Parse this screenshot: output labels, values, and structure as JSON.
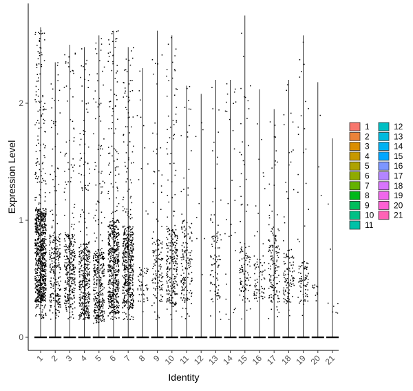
{
  "chart_data": {
    "type": "violin-dotplot",
    "title": "",
    "xlabel": "Identity",
    "ylabel": "Expression Level",
    "ylim": [
      -0.12,
      2.85
    ],
    "yticks": [
      0,
      1,
      2
    ],
    "categories": [
      "1",
      "2",
      "3",
      "4",
      "5",
      "6",
      "7",
      "8",
      "9",
      "10",
      "11",
      "12",
      "13",
      "14",
      "15",
      "16",
      "17",
      "18",
      "19",
      "20",
      "21"
    ],
    "max_values": [
      2.65,
      2.35,
      2.5,
      2.48,
      2.58,
      2.62,
      2.48,
      2.3,
      2.62,
      2.58,
      2.15,
      2.08,
      2.2,
      2.2,
      2.75,
      2.12,
      1.95,
      2.2,
      2.58,
      2.18,
      1.7
    ],
    "dense_band": [
      [
        0.3,
        1.1
      ],
      [
        0.2,
        0.9
      ],
      [
        0.25,
        0.9
      ],
      [
        0.15,
        0.8
      ],
      [
        0.12,
        0.75
      ],
      [
        0.2,
        1.0
      ],
      [
        0.25,
        0.95
      ],
      [
        0.3,
        0.6
      ],
      [
        0.3,
        0.85
      ],
      [
        0.25,
        0.95
      ],
      [
        0.3,
        1.0
      ],
      [
        0.0,
        0.0
      ],
      [
        0.3,
        0.9
      ],
      [
        0.0,
        0.0
      ],
      [
        0.3,
        0.8
      ],
      [
        0.3,
        0.7
      ],
      [
        0.3,
        0.95
      ],
      [
        0.3,
        0.75
      ],
      [
        0.3,
        0.65
      ],
      [
        0.3,
        0.45
      ],
      [
        0.2,
        0.3
      ]
    ],
    "relative_cell_counts": [
      900,
      260,
      330,
      380,
      360,
      560,
      500,
      60,
      140,
      260,
      160,
      8,
      90,
      30,
      110,
      70,
      140,
      110,
      90,
      14,
      8
    ],
    "zero_line_at": 0,
    "legend": {
      "position": "right",
      "entries": [
        {
          "label": "1",
          "color": "#F8766D"
        },
        {
          "label": "2",
          "color": "#EC8239"
        },
        {
          "label": "3",
          "color": "#DB8E00"
        },
        {
          "label": "4",
          "color": "#C79800"
        },
        {
          "label": "5",
          "color": "#AEA200"
        },
        {
          "label": "6",
          "color": "#8FAA00"
        },
        {
          "label": "7",
          "color": "#64B200"
        },
        {
          "label": "8",
          "color": "#00B81B"
        },
        {
          "label": "9",
          "color": "#00BD5C"
        },
        {
          "label": "10",
          "color": "#00C085"
        },
        {
          "label": "11",
          "color": "#00C1A7"
        },
        {
          "label": "12",
          "color": "#00BFC4"
        },
        {
          "label": "13",
          "color": "#00BADE"
        },
        {
          "label": "14",
          "color": "#00B2F3"
        },
        {
          "label": "15",
          "color": "#00A6FF"
        },
        {
          "label": "16",
          "color": "#7C96FF"
        },
        {
          "label": "17",
          "color": "#B385FF"
        },
        {
          "label": "18",
          "color": "#D874FD"
        },
        {
          "label": "19",
          "color": "#EF67EB"
        },
        {
          "label": "20",
          "color": "#FD61D3"
        },
        {
          "label": "21",
          "color": "#FF63B6"
        }
      ]
    }
  }
}
